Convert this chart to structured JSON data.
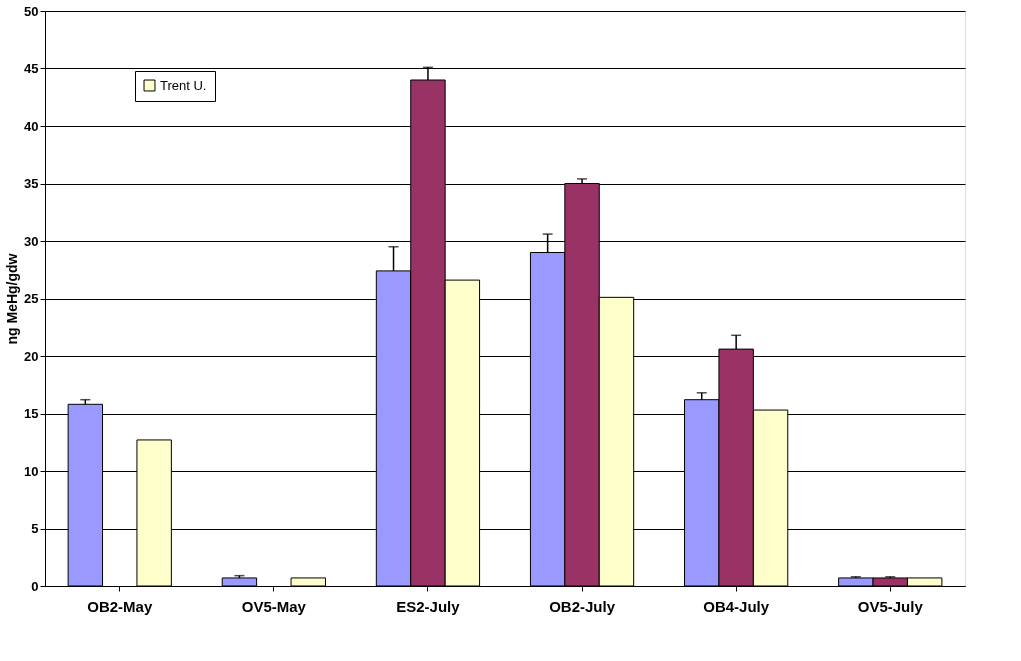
{
  "chart_data": {
    "type": "bar",
    "ylabel": "ng MeHg/gdw",
    "categories": [
      "OB2-May",
      "OV5-May",
      "ES2-July",
      "OB2-July",
      "OB4-July",
      "OV5-July"
    ],
    "series": [
      {
        "color": "#9999ff",
        "values": [
          15.8,
          0.7,
          27.4,
          29.0,
          16.2,
          0.7
        ],
        "errors": [
          [
            15.8,
            16.2
          ],
          [
            0.7,
            0.9
          ],
          [
            27.4,
            29.5
          ],
          [
            29.0,
            30.6
          ],
          [
            16.2,
            16.8
          ],
          [
            0.7,
            0.8
          ]
        ]
      },
      {
        "color": "#993366",
        "values": [
          null,
          null,
          44.0,
          35.0,
          20.6,
          0.7
        ],
        "errors": [
          null,
          null,
          [
            44.0,
            45.1
          ],
          [
            35.0,
            35.4
          ],
          [
            20.6,
            21.8
          ],
          [
            0.7,
            0.8
          ]
        ]
      },
      {
        "name": "Trent U.",
        "color": "#ffffcc",
        "values": [
          12.7,
          0.7,
          26.6,
          25.1,
          15.3,
          0.7
        ]
      }
    ],
    "ylim": [
      0,
      50
    ],
    "yticks": [
      0,
      5,
      10,
      15,
      20,
      25,
      30,
      35,
      40,
      45,
      50
    ],
    "grid": "y",
    "legend": "top left"
  }
}
